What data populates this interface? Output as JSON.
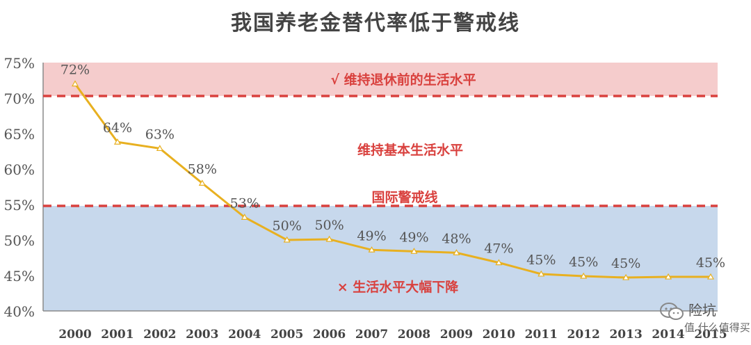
{
  "chart_data": {
    "type": "line",
    "title": "我国养老金替代率低于警戒线",
    "x": [
      "2000",
      "2001",
      "2002",
      "2003",
      "2004",
      "2005",
      "2006",
      "2007",
      "2008",
      "2009",
      "2010",
      "2011",
      "2012",
      "2013",
      "2014",
      "2015"
    ],
    "series": [
      {
        "values": [
          72,
          63.8,
          62.9,
          58,
          53.2,
          50,
          50.1,
          48.6,
          48.4,
          48.2,
          46.8,
          45.2,
          44.9,
          44.7,
          44.8,
          44.8
        ],
        "color": "#e8b020"
      }
    ],
    "data_labels": [
      "72%",
      "64%",
      "63%",
      "58%",
      "53%",
      "50%",
      "50%",
      "49%",
      "49%",
      "48%",
      "47%",
      "45%",
      "45%",
      "45%",
      "",
      "45%"
    ],
    "y_ticks": [
      "40%",
      "45%",
      "50%",
      "55%",
      "60%",
      "65%",
      "70%",
      "75%"
    ],
    "ylim": [
      40,
      75
    ],
    "grid": false,
    "bands": [
      {
        "from": 70.3,
        "to": 75,
        "color": "#f5cccc",
        "label": "√ 维持退休前的生活水平"
      },
      {
        "from": 40,
        "to": 54.8,
        "color": "#c7d8ec",
        "label": "× 生活水平大幅下降"
      }
    ],
    "middle_zone_label": "维持基本生活水平",
    "threshold_lines": [
      {
        "value": 70.3,
        "color": "#d9413e"
      },
      {
        "value": 54.8,
        "color": "#d9413e",
        "label": "国际警戒线"
      }
    ],
    "label_color": "#d9413e",
    "text_color": "#555555"
  },
  "watermark": {
    "text": "险坑",
    "subtext": "值 什么值得买",
    "icon": "wechat-logo-icon"
  }
}
